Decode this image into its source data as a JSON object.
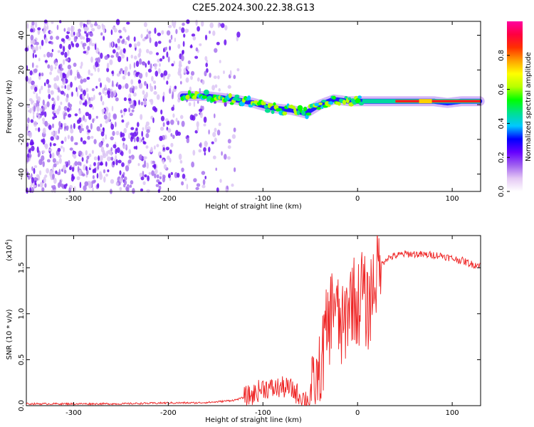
{
  "title": "C2E5.2024.300.22.38.G13",
  "chart_data": [
    {
      "type": "heatmap",
      "xlabel": "Height of straight line (km)",
      "ylabel": "Frequency (Hz)",
      "xlim": [
        -350,
        130
      ],
      "ylim": [
        -50,
        48
      ],
      "xticks": [
        -300,
        -200,
        -100,
        0,
        100
      ],
      "xtick_labels": [
        "-300",
        "-200",
        "-100",
        "0",
        "100"
      ],
      "yticks": [
        -40,
        -20,
        0,
        20,
        40
      ],
      "ytick_labels": [
        "-40",
        "-20",
        "0",
        "20",
        "40"
      ],
      "colorbar": {
        "label": "Normalized spectral amplitude",
        "range": [
          0,
          1
        ],
        "ticks": [
          0.0,
          0.2,
          0.4,
          0.6,
          0.8
        ],
        "tick_labels": [
          "0.0",
          "0.2",
          "0.4",
          "0.6",
          "0.8"
        ],
        "colors": [
          "#ffffff",
          "#e4c8f4",
          "#a060f0",
          "#6600ff",
          "#0000ff",
          "#00c8ff",
          "#00e090",
          "#00ff00",
          "#b8ff00",
          "#ffff00",
          "#ffa000",
          "#ff3000",
          "#ff0040",
          "#ff00a0"
        ]
      },
      "ridge": {
        "x": [
          -185,
          -160,
          -130,
          -110,
          -90,
          -70,
          -55,
          -40,
          -25,
          -10,
          0,
          20,
          50,
          80,
          95,
          110,
          130
        ],
        "y": [
          5,
          5,
          3,
          1,
          -2,
          -3,
          -5,
          0,
          3,
          2,
          2,
          2,
          2,
          2,
          1,
          2,
          2
        ]
      },
      "grid": false
    },
    {
      "type": "line",
      "xlabel": "Height of straight line (km)",
      "ylabel": "SNR (10 * v/v)",
      "y_multiplier_label": "(x10",
      "y_multiplier_exp": "4",
      "xlim": [
        -350,
        130
      ],
      "ylim": [
        0,
        1.85
      ],
      "xticks": [
        -300,
        -200,
        -100,
        0,
        100
      ],
      "xtick_labels": [
        "-300",
        "-200",
        "-100",
        "0",
        "100"
      ],
      "yticks": [
        0.0,
        0.5,
        1.0,
        1.5
      ],
      "ytick_labels": [
        "0.0",
        "0.5",
        "1.0",
        "1.5"
      ],
      "series": [
        {
          "color": "#ee2222",
          "x": [
            -350,
            -300,
            -250,
            -200,
            -170,
            -150,
            -130,
            -110,
            -100,
            -90,
            -80,
            -70,
            -60,
            -50,
            -45,
            -40,
            -35,
            -30,
            -25,
            -20,
            -15,
            -10,
            -5,
            0,
            5,
            10,
            15,
            20,
            30,
            40,
            50,
            60,
            70,
            80,
            90,
            100,
            110,
            120,
            130
          ],
          "y": [
            0.02,
            0.02,
            0.02,
            0.03,
            0.03,
            0.04,
            0.06,
            0.12,
            0.2,
            0.18,
            0.2,
            0.18,
            0.1,
            0.05,
            0.1,
            0.3,
            0.7,
            0.9,
            1.2,
            0.9,
            0.8,
            1.1,
            1.2,
            1.05,
            1.3,
            1.0,
            1.25,
            1.45,
            1.6,
            1.63,
            1.65,
            1.65,
            1.64,
            1.64,
            1.63,
            1.6,
            1.58,
            1.54,
            1.53
          ]
        }
      ],
      "grid": false
    }
  ]
}
